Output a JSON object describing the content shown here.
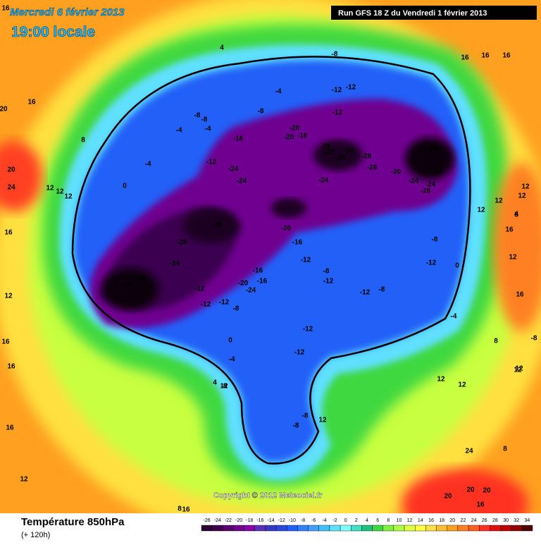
{
  "header": {
    "date": "Mercredi 6 février 2013",
    "time": "19:00 locale",
    "run": "Run GFS 18 Z du Vendredi 1 février 2013"
  },
  "map": {
    "labels": [
      16,
      4,
      -8,
      16,
      16,
      16,
      16,
      20,
      -4,
      -12,
      -12,
      -8,
      -8,
      -8,
      -12,
      -4,
      -4,
      8,
      -20,
      -16,
      -20,
      -16,
      -28,
      -20,
      -28,
      -28,
      -28,
      -20,
      -28,
      -28,
      -24,
      -24,
      -28,
      -24,
      -12,
      -24,
      -24,
      -24,
      20,
      24,
      12,
      12,
      12,
      0,
      -4,
      -28,
      -20,
      -28,
      -28,
      -24,
      -28,
      -28,
      -8,
      -8,
      -12,
      -12,
      -20,
      -24,
      -16,
      -16,
      -16,
      -12,
      -8,
      -12,
      -12,
      -12,
      -8,
      -12,
      -12,
      -12,
      0,
      -4,
      0,
      -4,
      4,
      -8,
      -8,
      -8,
      12,
      12,
      16,
      16,
      16,
      12,
      12,
      12,
      8,
      8,
      12,
      12,
      16,
      12,
      12,
      8,
      4,
      12,
      12,
      24,
      20,
      20,
      20,
      16,
      16,
      16,
      8,
      16,
      12,
      12,
      -8
    ],
    "copyright": "Copyright © 2012 Meteociel.fr"
  },
  "footer": {
    "title": "Température 850hPa",
    "lead": "(+ 120h)"
  },
  "legend": {
    "ticks": [
      -26,
      -24,
      -22,
      -20,
      -18,
      -16,
      -14,
      -12,
      -10,
      -8,
      -6,
      -4,
      -2,
      0,
      2,
      4,
      6,
      8,
      10,
      12,
      14,
      16,
      18,
      20,
      22,
      24,
      26,
      28,
      30,
      32,
      34
    ],
    "colors": [
      "#2a0030",
      "#400050",
      "#580070",
      "#700090",
      "#8800a8",
      "#5a30b8",
      "#3838c8",
      "#2848e0",
      "#2060f8",
      "#3080ff",
      "#40a0ff",
      "#40c0ff",
      "#60e0ff",
      "#80ffff",
      "#40e0c0",
      "#20c080",
      "#40d840",
      "#80f040",
      "#b0ff40",
      "#e0ff40",
      "#ffff40",
      "#ffe040",
      "#ffc030",
      "#ffa020",
      "#ff8020",
      "#ff6020",
      "#ff3020",
      "#e01010",
      "#c00000",
      "#900000",
      "#500000"
    ]
  }
}
